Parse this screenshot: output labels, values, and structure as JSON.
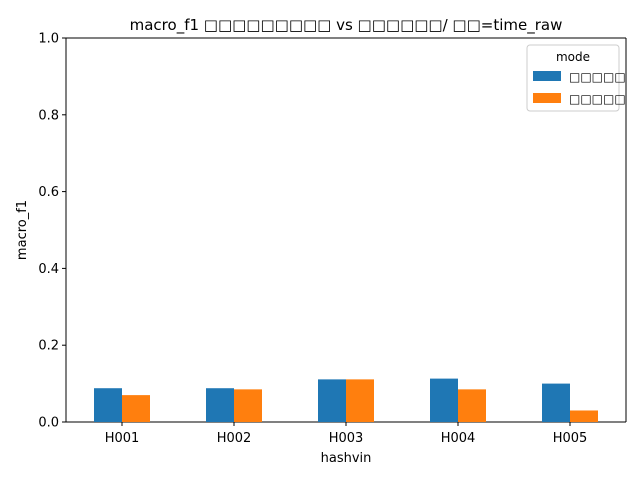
{
  "colors": {
    "series_1": "#1f77b4",
    "series_2": "#ff7f0e",
    "axis": "#000000",
    "legend_border": "#cccccc"
  },
  "chart_data": {
    "type": "bar",
    "title": "macro_f1 □□□□□□□□□ vs □□□□□□/ □□=time_raw",
    "xlabel": "hashvin",
    "ylabel": "macro_f1",
    "ylim": [
      0,
      1
    ],
    "yticks": [
      "0.0",
      "0.2",
      "0.4",
      "0.6",
      "0.8",
      "1.0"
    ],
    "categories": [
      "H001",
      "H002",
      "H003",
      "H004",
      "H005"
    ],
    "legend": {
      "title": "mode",
      "position": "top-right"
    },
    "grid": false,
    "series": [
      {
        "name": "□□□□□",
        "color": "#1f77b4",
        "values": [
          0.088,
          0.088,
          0.111,
          0.113,
          0.1
        ]
      },
      {
        "name": "□□□□□",
        "color": "#ff7f0e",
        "values": [
          0.07,
          0.085,
          0.111,
          0.085,
          0.03
        ]
      }
    ]
  }
}
